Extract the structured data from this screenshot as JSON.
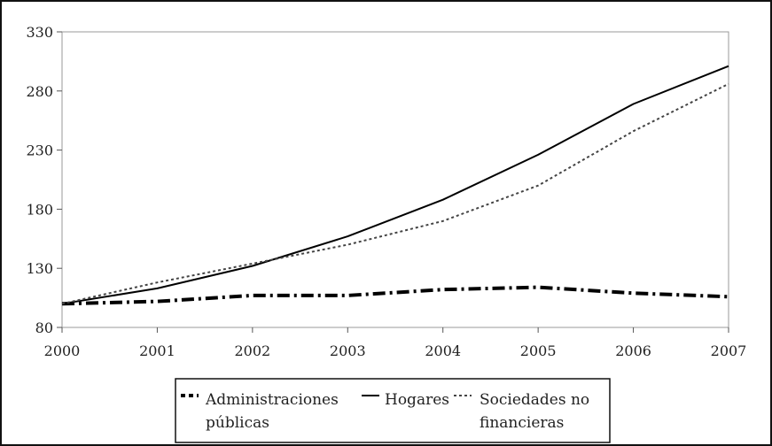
{
  "chart_data": {
    "type": "line",
    "x": [
      "2000",
      "2001",
      "2002",
      "2003",
      "2004",
      "2005",
      "2006",
      "2007"
    ],
    "ylim": [
      80,
      330
    ],
    "yticks": [
      80,
      130,
      180,
      230,
      280,
      330
    ],
    "grid": false,
    "legend_position": "bottom",
    "series": [
      {
        "name": "Administraciones públicas",
        "label_lines": [
          "Administraciones",
          "públicas"
        ],
        "style": "dash-dot-thick",
        "values": [
          100,
          102,
          107,
          107,
          112,
          114,
          109,
          106
        ]
      },
      {
        "name": "Hogares",
        "label_lines": [
          "Hogares"
        ],
        "style": "solid",
        "values": [
          100,
          113,
          132,
          157,
          188,
          226,
          269,
          301
        ]
      },
      {
        "name": "Sociedades no financieras",
        "label_lines": [
          "Sociedades no",
          "financieras"
        ],
        "style": "dotted",
        "values": [
          100,
          118,
          134,
          150,
          170,
          200,
          246,
          286
        ]
      }
    ]
  }
}
